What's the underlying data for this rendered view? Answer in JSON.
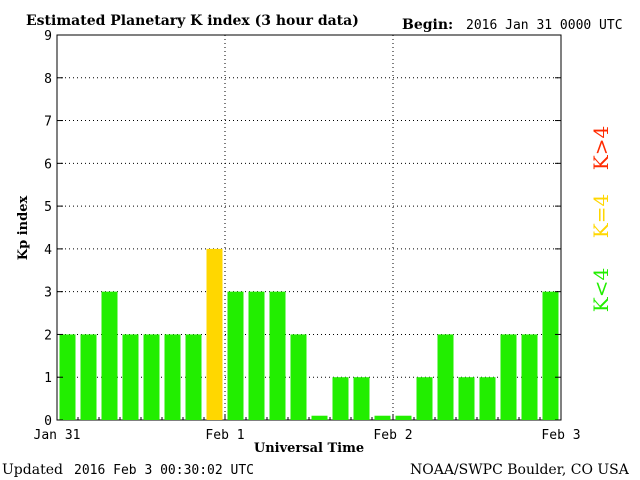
{
  "header": {
    "title": "Estimated Planetary K index (3 hour data)",
    "begin_label": "Begin:",
    "begin_value": "2016 Jan 31 0000 UTC"
  },
  "footer": {
    "updated_label": "Updated",
    "updated_value": "2016 Feb  3 00:30:02 UTC",
    "credit": "NOAA/SWPC Boulder, CO USA"
  },
  "legend": [
    {
      "label": "K>4",
      "color": "#ff2a00"
    },
    {
      "label": "K=4",
      "color": "#ffd700"
    },
    {
      "label": "K<4",
      "color": "#22ee00"
    }
  ],
  "chart_data": {
    "type": "bar",
    "title": "Estimated Planetary K index (3 hour data)",
    "xlabel": "Universal Time",
    "ylabel": "Kp index",
    "ylim": [
      0,
      9
    ],
    "yticks": [
      "0",
      "1",
      "2",
      "3",
      "4",
      "5",
      "6",
      "7",
      "8",
      "9"
    ],
    "xticks": [
      "Jan 31",
      "Feb 1",
      "Feb 2",
      "Feb 3"
    ],
    "grid": true,
    "legend_position": "right",
    "colors": {
      "below": "#22ee00",
      "equal": "#ffd700",
      "above": "#ff2a00"
    },
    "interval_hours": 3,
    "values": [
      2,
      2,
      3,
      2,
      2,
      2,
      2,
      4,
      3,
      3,
      3,
      2,
      0.1,
      1,
      1,
      0.1,
      0.1,
      1,
      2,
      1,
      1,
      2,
      2,
      3
    ]
  }
}
